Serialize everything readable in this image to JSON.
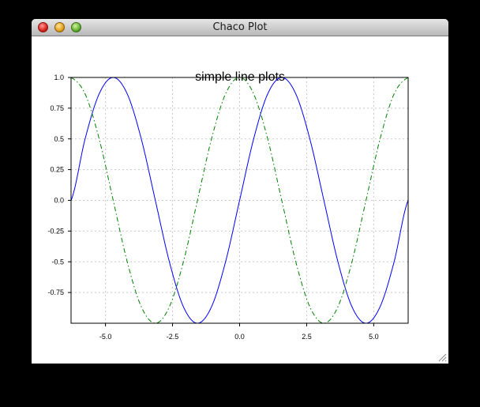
{
  "window": {
    "title": "Chaco Plot"
  },
  "chart_data": {
    "type": "line",
    "title": "simple line plots",
    "xlabel": "",
    "ylabel": "",
    "xlim": [
      -6.2832,
      6.2832
    ],
    "ylim": [
      -1.0,
      1.0
    ],
    "x_ticks": [
      -5.0,
      -2.5,
      0.0,
      2.5,
      5.0
    ],
    "x_tick_labels": [
      "-5.0",
      "-2.5",
      "0.0",
      "2.5",
      "5.0"
    ],
    "y_ticks": [
      1.0,
      0.75,
      0.5,
      0.25,
      0.0,
      -0.25,
      -0.5,
      -0.75
    ],
    "y_tick_labels": [
      "1.0",
      "0.75",
      "0.5",
      "0.25",
      "0.0",
      "-0.25",
      "-0.5",
      "-0.75"
    ],
    "grid": true,
    "series": [
      {
        "color": "#0000ff",
        "style": "solid",
        "x": [
          -6.2832,
          -5.7596,
          -5.236,
          -4.7124,
          -4.1888,
          -3.6652,
          -3.1416,
          -2.618,
          -2.0944,
          -1.5708,
          -1.0472,
          -0.5236,
          0.0,
          0.5236,
          1.0472,
          1.5708,
          2.0944,
          2.618,
          3.1416,
          3.6652,
          4.1888,
          4.7124,
          5.236,
          5.7596,
          6.2832
        ],
        "values": [
          0.0,
          0.5,
          0.866,
          1.0,
          0.866,
          0.5,
          0.0,
          -0.5,
          -0.866,
          -1.0,
          -0.866,
          -0.5,
          0.0,
          0.5,
          0.866,
          1.0,
          0.866,
          0.5,
          0.0,
          -0.5,
          -0.866,
          -1.0,
          -0.866,
          -0.5,
          0.0
        ]
      },
      {
        "color": "#008000",
        "style": "dash-dot",
        "x": [
          -6.2832,
          -5.7596,
          -5.236,
          -4.7124,
          -4.1888,
          -3.6652,
          -3.1416,
          -2.618,
          -2.0944,
          -1.5708,
          -1.0472,
          -0.5236,
          0.0,
          0.5236,
          1.0472,
          1.5708,
          2.0944,
          2.618,
          3.1416,
          3.6652,
          4.1888,
          4.7124,
          5.236,
          5.7596,
          6.2832
        ],
        "values": [
          1.0,
          0.866,
          0.5,
          0.0,
          -0.5,
          -0.866,
          -1.0,
          -0.866,
          -0.5,
          0.0,
          0.5,
          0.866,
          1.0,
          0.866,
          0.5,
          0.0,
          -0.5,
          -0.866,
          -1.0,
          -0.866,
          -0.5,
          0.0,
          0.5,
          0.866,
          1.0
        ]
      }
    ]
  }
}
